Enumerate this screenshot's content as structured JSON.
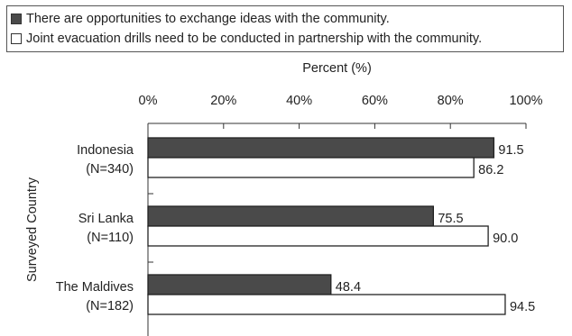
{
  "chart_data": {
    "type": "bar",
    "orientation": "horizontal",
    "xlabel": "Percent (%)",
    "ylabel": "Surveyed Country",
    "xlim": [
      0,
      100
    ],
    "xticks": [
      "0%",
      "20%",
      "40%",
      "60%",
      "80%",
      "100%"
    ],
    "categories": [
      {
        "name": "Indonesia",
        "n": "(N=340)"
      },
      {
        "name": "Sri Lanka",
        "n": "(N=110)"
      },
      {
        "name": "The Maldives",
        "n": "(N=182)"
      }
    ],
    "series": [
      {
        "name": "There are opportunities to exchange ideas with the community.",
        "color": "#4a4a4a",
        "values": [
          91.5,
          75.5,
          48.4
        ]
      },
      {
        "name": "Joint evacuation drills need to be conducted in partnership with the community.",
        "color": "#ffffff",
        "values": [
          86.2,
          90.0,
          94.5
        ]
      }
    ],
    "value_labels": [
      [
        "91.5",
        "75.5",
        "48.4"
      ],
      [
        "86.2",
        "90.0",
        "94.5"
      ]
    ],
    "legend_position": "top",
    "grid": false
  }
}
